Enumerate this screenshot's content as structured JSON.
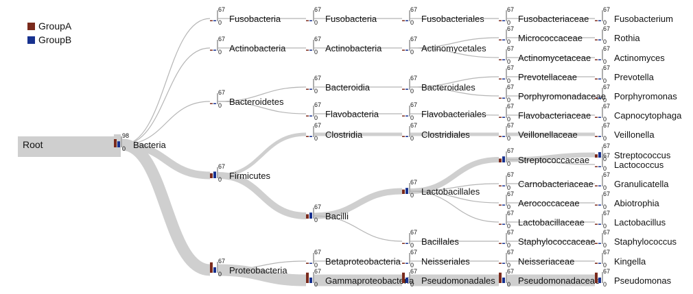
{
  "colors": {
    "groupA": "#7a2a1c",
    "groupB": "#17318f",
    "flow": "#cfcfcf",
    "text": "#111111"
  },
  "legend": [
    {
      "label": "GroupA",
      "color": "#7a2a1c"
    },
    {
      "label": "GroupB",
      "color": "#17318f"
    }
  ],
  "tree": {
    "root": {
      "label": "Root"
    },
    "nodes": [
      {
        "id": "bacteria",
        "label": "Bacteria",
        "level": 1,
        "parent": "root",
        "max": "98",
        "min": "0",
        "a": 0.75,
        "b": 0.55
      },
      {
        "id": "fuso_p",
        "label": "Fusobacteria",
        "level": 2,
        "parent": "bacteria",
        "max": "67",
        "min": "0",
        "a": 0.05,
        "b": 0.05
      },
      {
        "id": "actino_p",
        "label": "Actinobacteria",
        "level": 2,
        "parent": "bacteria",
        "max": "67",
        "min": "0",
        "a": 0.05,
        "b": 0.05
      },
      {
        "id": "bacteroidetes",
        "label": "Bacteroidetes",
        "level": 2,
        "parent": "bacteria",
        "max": "67",
        "min": "0",
        "a": 0.05,
        "b": 0.05
      },
      {
        "id": "firmicutes",
        "label": "Firmicutes",
        "level": 2,
        "parent": "bacteria",
        "max": "67",
        "min": "0",
        "a": 0.45,
        "b": 0.6
      },
      {
        "id": "proteo",
        "label": "Proteobacteria",
        "level": 2,
        "parent": "bacteria",
        "max": "67",
        "min": "0",
        "a": 0.95,
        "b": 0.5
      },
      {
        "id": "fuso_c",
        "label": "Fusobacteria",
        "level": 3,
        "parent": "fuso_p",
        "max": "67",
        "min": "0",
        "a": 0.05,
        "b": 0.05
      },
      {
        "id": "actino_c",
        "label": "Actinobacteria",
        "level": 3,
        "parent": "actino_p",
        "max": "67",
        "min": "0",
        "a": 0.05,
        "b": 0.05
      },
      {
        "id": "bacteroidia",
        "label": "Bacteroidia",
        "level": 3,
        "parent": "bacteroidetes",
        "max": "67",
        "min": "0",
        "a": 0.05,
        "b": 0.05
      },
      {
        "id": "flavob_c",
        "label": "Flavobacteria",
        "level": 3,
        "parent": "bacteroidetes",
        "max": "67",
        "min": "0",
        "a": 0.05,
        "b": 0.05
      },
      {
        "id": "clostridia",
        "label": "Clostridia",
        "level": 3,
        "parent": "firmicutes",
        "max": "67",
        "min": "0",
        "a": 0.1,
        "b": 0.1
      },
      {
        "id": "bacilli",
        "label": "Bacilli",
        "level": 3,
        "parent": "firmicutes",
        "max": "67",
        "min": "0",
        "a": 0.4,
        "b": 0.55
      },
      {
        "id": "betaproteo",
        "label": "Betaproteobacteria",
        "level": 3,
        "parent": "proteo",
        "max": "67",
        "min": "0",
        "a": 0.1,
        "b": 0.05
      },
      {
        "id": "gammaproteo",
        "label": "Gammaproteobacteria",
        "level": 3,
        "parent": "proteo",
        "max": "67",
        "min": "0",
        "a": 0.95,
        "b": 0.5
      },
      {
        "id": "fusobacteriales",
        "label": "Fusobacteriales",
        "level": 4,
        "parent": "fuso_c",
        "max": "67",
        "min": "0",
        "a": 0.05,
        "b": 0.05
      },
      {
        "id": "actinomycetales",
        "label": "Actinomycetales",
        "level": 4,
        "parent": "actino_c",
        "max": "67",
        "min": "0",
        "a": 0.05,
        "b": 0.05
      },
      {
        "id": "bacteroidales",
        "label": "Bacteroidales",
        "level": 4,
        "parent": "bacteroidia",
        "max": "67",
        "min": "0",
        "a": 0.05,
        "b": 0.05
      },
      {
        "id": "flavobacteriales",
        "label": "Flavobacteriales",
        "level": 4,
        "parent": "flavob_c",
        "max": "67",
        "min": "0",
        "a": 0.05,
        "b": 0.05
      },
      {
        "id": "clostridiales",
        "label": "Clostridiales",
        "level": 4,
        "parent": "clostridia",
        "max": "67",
        "min": "0",
        "a": 0.1,
        "b": 0.1
      },
      {
        "id": "lactobacillales",
        "label": "Lactobacillales",
        "level": 4,
        "parent": "bacilli",
        "max": "67",
        "min": "0",
        "a": 0.4,
        "b": 0.55
      },
      {
        "id": "bacillales",
        "label": "Bacillales",
        "level": 4,
        "parent": "bacilli",
        "max": "67",
        "min": "0",
        "a": 0.05,
        "b": 0.05
      },
      {
        "id": "neisseriales",
        "label": "Neisseriales",
        "level": 4,
        "parent": "betaproteo",
        "max": "67",
        "min": "0",
        "a": 0.1,
        "b": 0.05
      },
      {
        "id": "pseudomonadales",
        "label": "Pseudomonadales",
        "level": 4,
        "parent": "gammaproteo",
        "max": "67",
        "min": "0",
        "a": 0.95,
        "b": 0.5
      },
      {
        "id": "fusobacteriaceae",
        "label": "Fusobacteriaceae",
        "level": 5,
        "parent": "fusobacteriales",
        "max": "67",
        "min": "0",
        "a": 0.05,
        "b": 0.05
      },
      {
        "id": "micrococcaceae",
        "label": "Micrococcaceae",
        "level": 5,
        "parent": "actinomycetales",
        "max": "67",
        "min": "0",
        "a": 0.05,
        "b": 0.05
      },
      {
        "id": "actinomycetaceae",
        "label": "Actinomycetaceae",
        "level": 5,
        "parent": "actinomycetales",
        "max": "67",
        "min": "0",
        "a": 0.05,
        "b": 0.05
      },
      {
        "id": "prevotellaceae",
        "label": "Prevotellaceae",
        "level": 5,
        "parent": "bacteroidales",
        "max": "67",
        "min": "0",
        "a": 0.05,
        "b": 0.05
      },
      {
        "id": "porphyromonadaceae",
        "label": "Porphyromonadaceae",
        "level": 5,
        "parent": "bacteroidales",
        "max": "67",
        "min": "0",
        "a": 0.05,
        "b": 0.05
      },
      {
        "id": "flavobacteriaceae",
        "label": "Flavobacteriaceae",
        "level": 5,
        "parent": "flavobacteriales",
        "max": "67",
        "min": "0",
        "a": 0.05,
        "b": 0.05
      },
      {
        "id": "veillonellaceae",
        "label": "Veillonellaceae",
        "level": 5,
        "parent": "clostridiales",
        "max": "67",
        "min": "0",
        "a": 0.1,
        "b": 0.1
      },
      {
        "id": "streptococcaceae",
        "label": "Streptococcaceae",
        "level": 5,
        "parent": "lactobacillales",
        "max": "67",
        "min": "0",
        "a": 0.35,
        "b": 0.55
      },
      {
        "id": "carnobacteriaceae",
        "label": "Carnobacteriaceae",
        "level": 5,
        "parent": "lactobacillales",
        "max": "67",
        "min": "0",
        "a": 0.05,
        "b": 0.05
      },
      {
        "id": "aerococcaceae",
        "label": "Aerococcaceae",
        "level": 5,
        "parent": "lactobacillales",
        "max": "67",
        "min": "0",
        "a": 0.05,
        "b": 0.05
      },
      {
        "id": "lactobacillaceae",
        "label": "Lactobacillaceae",
        "level": 5,
        "parent": "lactobacillales",
        "max": "67",
        "min": "0",
        "a": 0.05,
        "b": 0.05
      },
      {
        "id": "staphylococcaceae",
        "label": "Staphylococcaceae",
        "level": 5,
        "parent": "bacillales",
        "max": "67",
        "min": "0",
        "a": 0.05,
        "b": 0.05
      },
      {
        "id": "neisseriaceae",
        "label": "Neisseriaceae",
        "level": 5,
        "parent": "neisseriales",
        "max": "67",
        "min": "0",
        "a": 0.1,
        "b": 0.05
      },
      {
        "id": "pseudomonadaceae",
        "label": "Pseudomonadaceae",
        "level": 5,
        "parent": "pseudomonadales",
        "max": "67",
        "min": "0",
        "a": 0.95,
        "b": 0.5
      },
      {
        "id": "fusobacterium",
        "label": "Fusobacterium",
        "level": 6,
        "parent": "fusobacteriaceae",
        "max": "67",
        "min": "0",
        "a": 0.05,
        "b": 0.05
      },
      {
        "id": "rothia",
        "label": "Rothia",
        "level": 6,
        "parent": "micrococcaceae",
        "max": "67",
        "min": "0",
        "a": 0.05,
        "b": 0.05
      },
      {
        "id": "actinomyces",
        "label": "Actinomyces",
        "level": 6,
        "parent": "actinomycetaceae",
        "max": "67",
        "min": "0",
        "a": 0.05,
        "b": 0.05
      },
      {
        "id": "prevotella",
        "label": "Prevotella",
        "level": 6,
        "parent": "prevotellaceae",
        "max": "67",
        "min": "0",
        "a": 0.05,
        "b": 0.05
      },
      {
        "id": "porphyromonas",
        "label": "Porphyromonas",
        "level": 6,
        "parent": "porphyromonadaceae",
        "max": "67",
        "min": "0",
        "a": 0.05,
        "b": 0.05
      },
      {
        "id": "capnocytophaga",
        "label": "Capnocytophaga",
        "level": 6,
        "parent": "flavobacteriaceae",
        "max": "67",
        "min": "0",
        "a": 0.05,
        "b": 0.05
      },
      {
        "id": "veillonella",
        "label": "Veillonella",
        "level": 6,
        "parent": "veillonellaceae",
        "max": "67",
        "min": "0",
        "a": 0.1,
        "b": 0.1
      },
      {
        "id": "streptococcus",
        "label": "Streptococcus",
        "level": 6,
        "parent": "streptococcaceae",
        "max": "67",
        "min": "0",
        "a": 0.3,
        "b": 0.5
      },
      {
        "id": "lactococcus",
        "label": "Lactococcus",
        "level": 6,
        "parent": "streptococcaceae",
        "max": "67",
        "min": "0",
        "a": 0.05,
        "b": 0.05
      },
      {
        "id": "granulicatella",
        "label": "Granulicatella",
        "level": 6,
        "parent": "carnobacteriaceae",
        "max": "67",
        "min": "0",
        "a": 0.05,
        "b": 0.05
      },
      {
        "id": "abiotrophia",
        "label": "Abiotrophia",
        "level": 6,
        "parent": "aerococcaceae",
        "max": "67",
        "min": "0",
        "a": 0.05,
        "b": 0.05
      },
      {
        "id": "lactobacillus",
        "label": "Lactobacillus",
        "level": 6,
        "parent": "lactobacillaceae",
        "max": "67",
        "min": "0",
        "a": 0.05,
        "b": 0.05
      },
      {
        "id": "staphylococcus",
        "label": "Staphylococcus",
        "level": 6,
        "parent": "staphylococcaceae",
        "max": "67",
        "min": "0",
        "a": 0.05,
        "b": 0.05
      },
      {
        "id": "kingella",
        "label": "Kingella",
        "level": 6,
        "parent": "neisseriaceae",
        "max": "67",
        "min": "0",
        "a": 0.1,
        "b": 0.05
      },
      {
        "id": "pseudomonas",
        "label": "Pseudomonas",
        "level": 6,
        "parent": "pseudomonadaceae",
        "max": "67",
        "min": "0",
        "a": 0.95,
        "b": 0.5
      }
    ]
  }
}
